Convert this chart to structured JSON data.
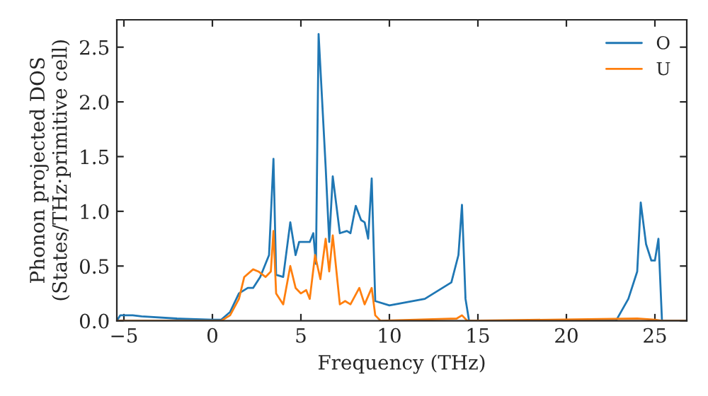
{
  "chart_data": {
    "type": "line",
    "xlabel": "Frequency (THz)",
    "ylabel": "Phonon projected DOS\n(States/THz·primitive cell)",
    "xlim": [
      -5.4,
      26.8
    ],
    "ylim": [
      0,
      2.75
    ],
    "xticks": [
      {
        "value": -5,
        "label": "−5"
      },
      0,
      5,
      10,
      15,
      20,
      25
    ],
    "yticks": [
      {
        "value": 0,
        "label": "0.0"
      },
      0.5,
      {
        "value": 1,
        "label": "1.0"
      },
      1.5,
      {
        "value": 2,
        "label": "2.0"
      },
      2.5
    ],
    "legend": "top right",
    "grid": false,
    "series": [
      {
        "name": "O",
        "color": "#1f77b4",
        "x": [
          -5.4,
          -5.2,
          -4.5,
          -4,
          -2,
          0,
          0.5,
          1,
          1.5,
          2,
          2.3,
          2.7,
          3.2,
          3.45,
          3.6,
          4,
          4.4,
          4.7,
          4.9,
          5.5,
          5.7,
          5.85,
          6.0,
          6.4,
          6.6,
          6.8,
          7.2,
          7.6,
          7.8,
          8.1,
          8.4,
          8.6,
          8.8,
          9.0,
          9.2,
          10,
          12,
          13.5,
          13.9,
          14.1,
          14.3,
          14.5,
          22.8,
          23.5,
          24,
          24.2,
          24.5,
          24.8,
          25,
          25.2,
          25.4,
          26.7
        ],
        "values": [
          0,
          0.05,
          0.05,
          0.04,
          0.02,
          0.01,
          0.01,
          0.08,
          0.25,
          0.3,
          0.3,
          0.4,
          0.6,
          1.48,
          0.42,
          0.4,
          0.9,
          0.6,
          0.72,
          0.72,
          0.8,
          0.52,
          2.62,
          1.4,
          0.72,
          1.32,
          0.8,
          0.82,
          0.8,
          1.05,
          0.92,
          0.9,
          0.75,
          1.3,
          0.18,
          0.14,
          0.2,
          0.35,
          0.6,
          1.06,
          0.2,
          0,
          0,
          0.2,
          0.45,
          1.08,
          0.7,
          0.55,
          0.55,
          0.75,
          0,
          0
        ]
      },
      {
        "name": "U",
        "color": "#ff7f0e",
        "x": [
          -5.4,
          0.5,
          1,
          1.5,
          1.8,
          2.3,
          2.6,
          3,
          3.3,
          3.45,
          3.6,
          4,
          4.4,
          4.7,
          5.0,
          5.3,
          5.5,
          5.8,
          6.1,
          6.4,
          6.6,
          6.8,
          7.2,
          7.5,
          7.8,
          8.3,
          8.6,
          9.0,
          9.2,
          9.5,
          13.8,
          14.1,
          14.4,
          24,
          25,
          25.4,
          26.7
        ],
        "values": [
          0,
          0,
          0.05,
          0.2,
          0.4,
          0.47,
          0.45,
          0.4,
          0.45,
          0.82,
          0.25,
          0.15,
          0.5,
          0.3,
          0.25,
          0.28,
          0.2,
          0.6,
          0.38,
          0.75,
          0.45,
          0.78,
          0.15,
          0.18,
          0.15,
          0.3,
          0.15,
          0.3,
          0.05,
          0,
          0.02,
          0.05,
          0,
          0.02,
          0.01,
          0,
          0
        ]
      }
    ]
  }
}
